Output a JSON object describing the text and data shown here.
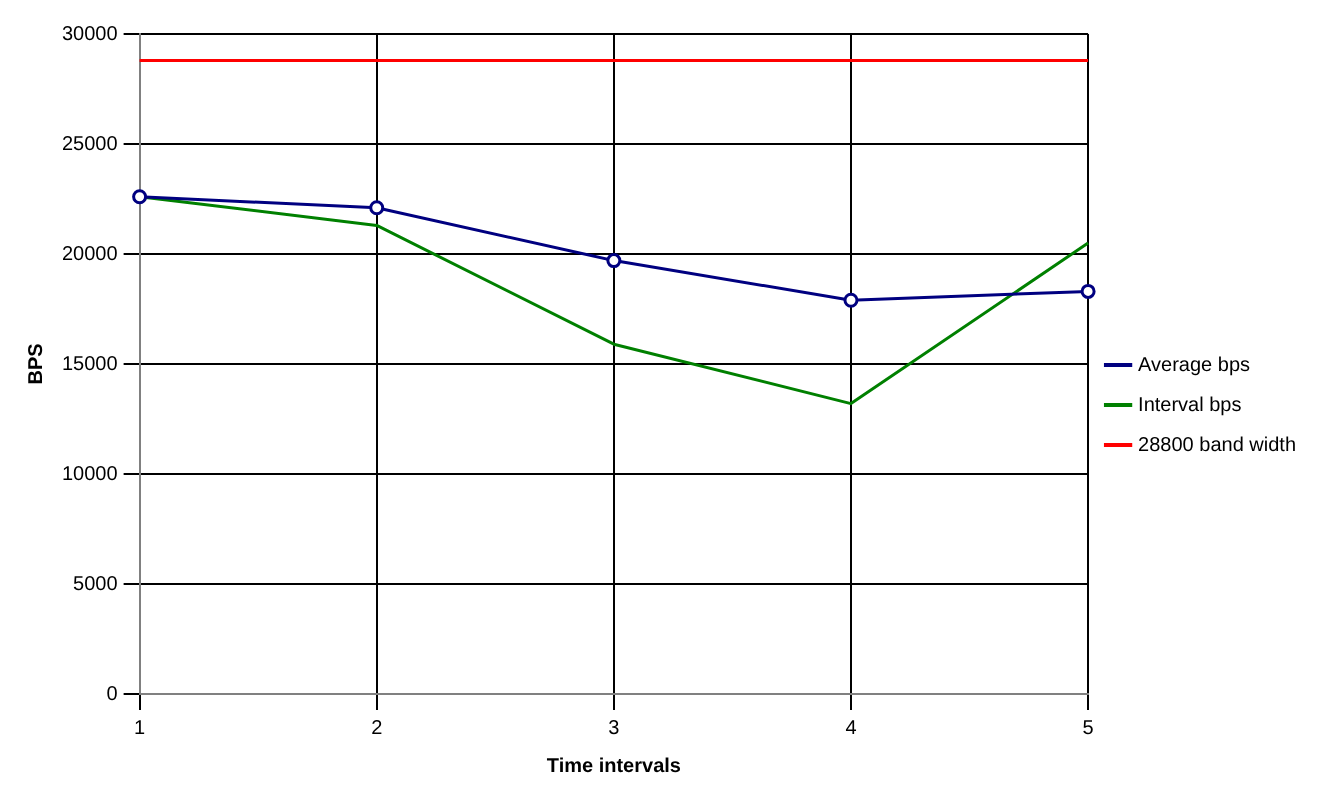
{
  "chart_data": {
    "type": "line",
    "xlabel": "Time intervals",
    "ylabel": "BPS",
    "categories": [
      "1",
      "2",
      "3",
      "4",
      "5"
    ],
    "series": [
      {
        "name": "Average bps",
        "color": "#000080",
        "marker": "circle",
        "values": [
          22600,
          22100,
          19700,
          17900,
          18300
        ]
      },
      {
        "name": "Interval bps",
        "color": "#008000",
        "marker": "none",
        "values": [
          22600,
          21300,
          15900,
          13200,
          20500
        ]
      },
      {
        "name": "28800 band width",
        "color": "#ff0000",
        "marker": "none",
        "values": [
          28800,
          28800,
          28800,
          28800,
          28800
        ]
      }
    ],
    "ylim": [
      0,
      30000
    ],
    "yticks": [
      0,
      5000,
      10000,
      15000,
      20000,
      25000,
      30000
    ],
    "grid": true,
    "legend": "right"
  }
}
